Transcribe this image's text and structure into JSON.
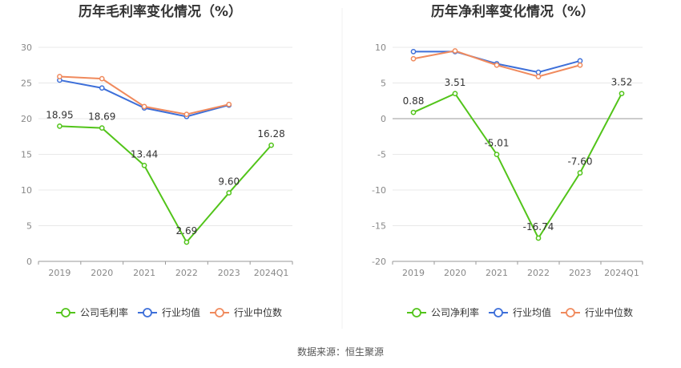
{
  "source": "数据来源：恒生聚源",
  "legend_labels": [
    "公司毛利率",
    "行业均值",
    "行业中位数",
    "公司净利率"
  ],
  "chart_data": [
    {
      "type": "line",
      "title": "历年毛利率变化情况（%）",
      "categories": [
        "2019",
        "2020",
        "2021",
        "2022",
        "2023",
        "2024Q1"
      ],
      "ylim": [
        0,
        30
      ],
      "yticks": [
        0,
        5,
        10,
        15,
        20,
        25,
        30
      ],
      "grid": true,
      "legend_position": "bottom",
      "series": [
        {
          "name": "公司毛利率",
          "color": "#52c41a",
          "values": [
            18.95,
            18.69,
            13.44,
            2.69,
            9.6,
            16.28
          ],
          "labels": [
            "18.95",
            "18.69",
            "13.44",
            "2.69",
            "9.60",
            "16.28"
          ]
        },
        {
          "name": "行业均值",
          "color": "#3d6fd9",
          "values": [
            25.4,
            24.3,
            21.5,
            20.3,
            21.9,
            null
          ]
        },
        {
          "name": "行业中位数",
          "color": "#f08a5d",
          "values": [
            25.9,
            25.6,
            21.7,
            20.6,
            22.0,
            null
          ]
        }
      ]
    },
    {
      "type": "line",
      "title": "历年净利率变化情况（%）",
      "categories": [
        "2019",
        "2020",
        "2021",
        "2022",
        "2023",
        "2024Q1"
      ],
      "ylim": [
        -20,
        10
      ],
      "yticks": [
        -20,
        -15,
        -10,
        -5,
        0,
        5,
        10
      ],
      "grid": true,
      "legend_position": "bottom",
      "series": [
        {
          "name": "公司净利率",
          "color": "#52c41a",
          "values": [
            0.88,
            3.51,
            -5.01,
            -16.74,
            -7.6,
            3.52
          ],
          "labels": [
            "0.88",
            "3.51",
            "-5.01",
            "-16.74",
            "-7.60",
            "3.52"
          ]
        },
        {
          "name": "行业均值",
          "color": "#3d6fd9",
          "values": [
            9.4,
            9.4,
            7.7,
            6.5,
            8.1,
            null
          ]
        },
        {
          "name": "行业中位数",
          "color": "#f08a5d",
          "values": [
            8.4,
            9.5,
            7.5,
            5.9,
            7.5,
            null
          ]
        }
      ]
    }
  ]
}
